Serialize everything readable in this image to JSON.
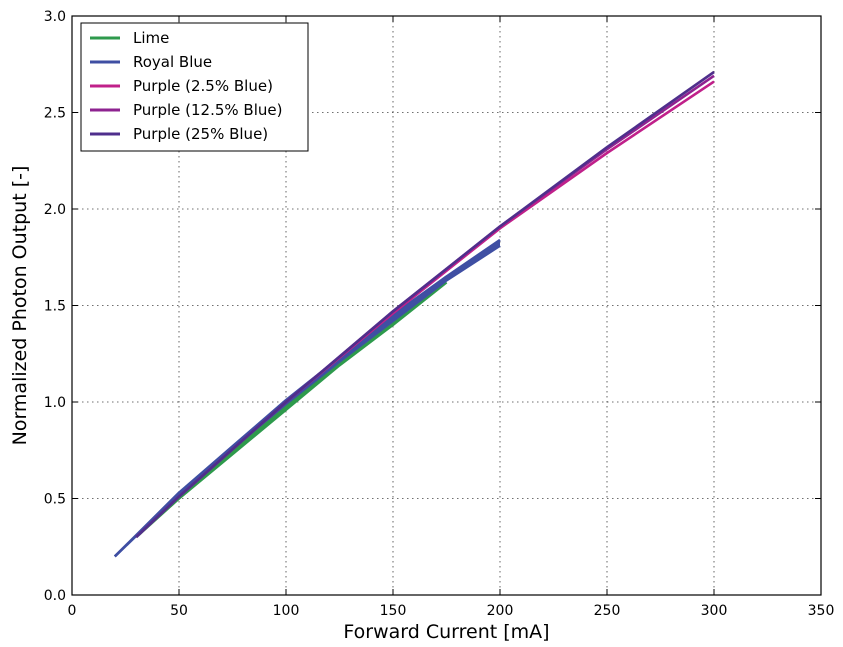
{
  "chart_data": {
    "type": "line",
    "title": "",
    "xlabel": "Forward Current [mA]",
    "ylabel": "Normalized Photon Output [-]",
    "xlim": [
      0,
      350
    ],
    "ylim": [
      0.0,
      3.0
    ],
    "xticks": [
      0,
      50,
      100,
      150,
      200,
      250,
      300,
      350
    ],
    "xtick_labels": [
      "0",
      "50",
      "100",
      "150",
      "200",
      "250",
      "300",
      "350"
    ],
    "yticks": [
      0.0,
      0.5,
      1.0,
      1.5,
      2.0,
      2.5,
      3.0
    ],
    "ytick_labels": [
      "0.0",
      "0.5",
      "1.0",
      "1.5",
      "2.0",
      "2.5",
      "3.0"
    ],
    "grid": true,
    "legend_position": "top-left",
    "series": [
      {
        "name": "Lime",
        "color": "#2e9a4c",
        "bands": [
          {
            "x": [
              30,
              50,
              75,
              100,
              125,
              150,
              175
            ],
            "y": [
              0.3,
              0.5,
              0.73,
              0.96,
              1.19,
              1.4,
              1.62
            ]
          },
          {
            "x": [
              30,
              50,
              75,
              100,
              125,
              150,
              175
            ],
            "y": [
              0.3,
              0.51,
              0.75,
              0.99,
              1.22,
              1.44,
              1.65
            ]
          }
        ]
      },
      {
        "name": "Royal Blue",
        "color": "#3f4fa3",
        "bands": [
          {
            "x": [
              20,
              50,
              75,
              100,
              125,
              150,
              175,
              200
            ],
            "y": [
              0.2,
              0.52,
              0.76,
              0.99,
              1.21,
              1.42,
              1.63,
              1.81
            ]
          },
          {
            "x": [
              20,
              50,
              75,
              100,
              125,
              150,
              175,
              200
            ],
            "y": [
              0.2,
              0.53,
              0.77,
              1.01,
              1.23,
              1.45,
              1.65,
              1.84
            ]
          }
        ]
      },
      {
        "name": "Purple (2.5% Blue)",
        "color": "#c0208a",
        "bands": [
          {
            "x": [
              30,
              50,
              100,
              150,
              200,
              250,
              300
            ],
            "y": [
              0.3,
              0.51,
              1.0,
              1.46,
              1.9,
              2.29,
              2.66
            ]
          }
        ]
      },
      {
        "name": "Purple (12.5% Blue)",
        "color": "#8e2390",
        "bands": [
          {
            "x": [
              30,
              50,
              100,
              150,
              200,
              250,
              300
            ],
            "y": [
              0.3,
              0.51,
              1.0,
              1.47,
              1.91,
              2.31,
              2.69
            ]
          }
        ]
      },
      {
        "name": "Purple (25% Blue)",
        "color": "#4f2f8c",
        "bands": [
          {
            "x": [
              30,
              50,
              100,
              150,
              200,
              250,
              300
            ],
            "y": [
              0.3,
              0.51,
              1.0,
              1.47,
              1.91,
              2.32,
              2.71
            ]
          }
        ]
      }
    ]
  }
}
